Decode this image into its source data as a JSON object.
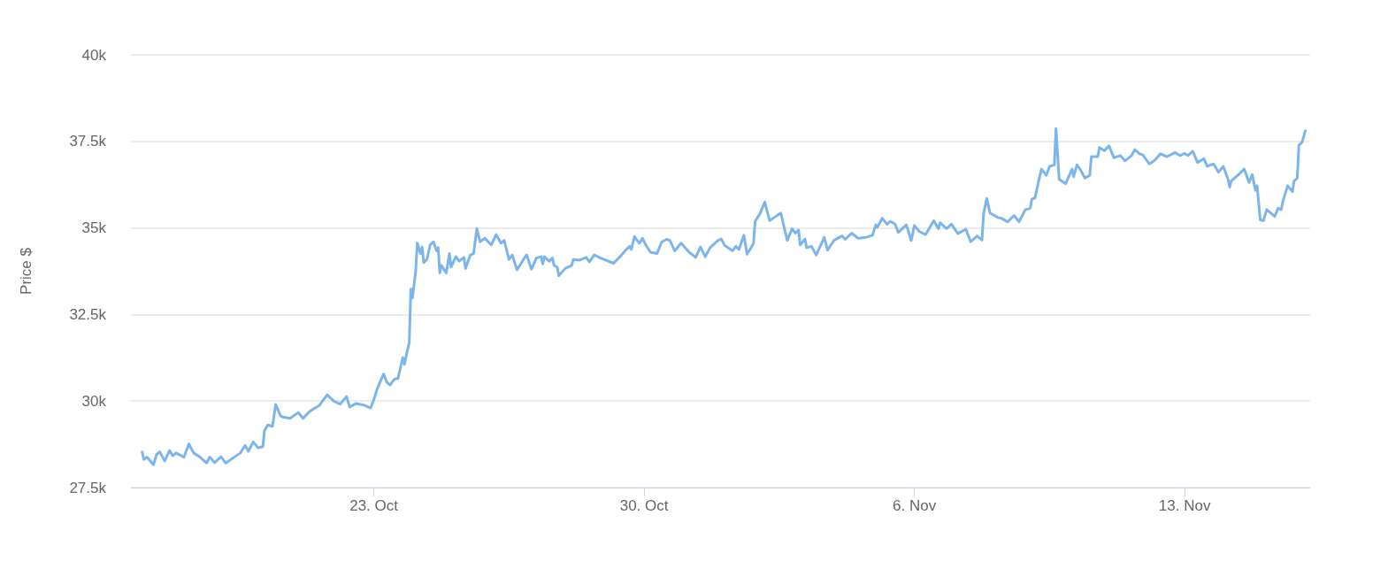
{
  "chart_data": {
    "type": "line",
    "ylabel": "Price $",
    "grid": "y",
    "marker": "none",
    "line_style": "solid",
    "xlim": [
      "--10-16T17:00",
      "--11-16T06:00"
    ],
    "xticks": [
      {
        "value": "--10-23",
        "label": "23. Oct"
      },
      {
        "value": "--10-30",
        "label": "30. Oct"
      },
      {
        "value": "--11-06",
        "label": "6. Nov"
      },
      {
        "value": "--11-13",
        "label": "13. Nov"
      }
    ],
    "ylim": [
      27500,
      40000
    ],
    "yticks": [
      {
        "value": 27500,
        "label": "27.5k"
      },
      {
        "value": 30000,
        "label": "30k"
      },
      {
        "value": 32500,
        "label": "32.5k"
      },
      {
        "value": 35000,
        "label": "35k"
      },
      {
        "value": 37500,
        "label": "37.5k"
      },
      {
        "value": 40000,
        "label": "40k"
      }
    ],
    "series": [
      {
        "color": "#7cb5ec",
        "x": [
          "--10-17T00:00",
          "--10-17T01:00",
          "--10-17T03:00",
          "--10-17T07:00",
          "--10-17T09:00",
          "--10-17T11:00",
          "--10-17T14:00",
          "--10-17T17:00",
          "--10-17T19:00",
          "--10-17T21:00",
          "--10-18T02:00",
          "--10-18T05:00",
          "--10-18T08:00",
          "--10-18T12:00",
          "--10-18T16:00",
          "--10-18T18:00",
          "--10-18T21:00",
          "--10-19T01:00",
          "--10-19T04:00",
          "--10-19T08:00",
          "--10-19T13:00",
          "--10-19T16:00",
          "--10-19T18:00",
          "--10-19T21:00",
          "--10-20T00:00",
          "--10-20T03:00",
          "--10-20T04:00",
          "--10-20T06:00",
          "--10-20T09:00",
          "--10-20T11:00",
          "--10-20T14:00",
          "--10-20T16:00",
          "--10-20T20:00",
          "--10-21T01:00",
          "--10-21T04:00",
          "--10-21T08:00",
          "--10-21T14:00",
          "--10-21T19:00",
          "--10-21T23:00",
          "--10-22T03:00",
          "--10-22T07:00",
          "--10-22T09:00",
          "--10-22T13:00",
          "--10-22T18:00",
          "--10-22T22:00",
          "--10-23T00:00",
          "--10-23T02:00",
          "--10-23T06:00",
          "--10-23T08:00",
          "--10-23T10:00",
          "--10-23T13:00",
          "--10-23T15:00",
          "--10-23T18:00",
          "--10-23T19:00",
          "--10-23T21:00",
          "--10-23T22:00",
          "--10-23T23:00",
          "--10-24T00:00",
          "--10-24T02:00",
          "--10-24T03:00",
          "--10-24T05:00",
          "--10-24T06:00",
          "--10-24T07:00",
          "--10-24T09:00",
          "--10-24T11:00",
          "--10-24T13:00",
          "--10-24T15:00",
          "--10-24T16:00",
          "--10-24T17:00",
          "--10-24T18:00",
          "--10-24T21:00",
          "--10-24T23:00",
          "--10-25T00:00",
          "--10-25T03:00",
          "--10-25T05:00",
          "--10-25T08:00",
          "--10-25T09:00",
          "--10-25T12:00",
          "--10-25T14:00",
          "--10-25T16:00",
          "--10-25T18:00",
          "--10-25T21:00",
          "--10-26T01:00",
          "--10-26T04:00",
          "--10-26T07:00",
          "--10-26T09:00",
          "--10-26T12:00",
          "--10-26T14:00",
          "--10-26T17:00",
          "--10-26T21:00",
          "--10-26T23:00",
          "--10-27T02:00",
          "--10-27T05:00",
          "--10-27T08:00",
          "--10-27T09:00",
          "--10-27T10:00",
          "--10-27T13:00",
          "--10-27T15:00",
          "--10-27T16:00",
          "--10-27T18:00",
          "--10-27T19:00",
          "--10-27T23:00",
          "--10-28T03:00",
          "--10-28T04:00",
          "--10-28T08:00",
          "--10-28T12:00",
          "--10-28T14:00",
          "--10-28T17:00",
          "--10-28T21:00",
          "--10-29T05:00",
          "--10-29T10:00",
          "--10-29T13:00",
          "--10-29T15:00",
          "--10-29T16:00",
          "--10-29T18:00",
          "--10-29T21:00",
          "--10-29T23:00",
          "--10-30T01:00",
          "--10-30T04:00",
          "--10-30T08:00",
          "--10-30T11:00",
          "--10-30T14:00",
          "--10-30T16:00",
          "--10-30T19:00",
          "--10-30T23:00",
          "--10-31T04:00",
          "--10-31T08:00",
          "--10-31T11:00",
          "--10-31T14:00",
          "--10-31T17:00",
          "--10-31T22:00",
          "--11-01T00:00",
          "--11-01T02:00",
          "--11-01T07:00",
          "--11-01T09:00",
          "--11-01T11:00",
          "--11-01T14:00",
          "--11-01T16:00",
          "--11-01T19:00",
          "--11-01T20:00",
          "--11-01T21:00",
          "--11-02T00:00",
          "--11-02T03:00",
          "--11-02T06:00",
          "--11-02T11:00",
          "--11-02T13:00",
          "--11-02T15:00",
          "--11-02T17:00",
          "--11-02T20:00",
          "--11-02T22:00",
          "--11-03T00:00",
          "--11-03T01:00",
          "--11-03T04:00",
          "--11-03T05:00",
          "--11-03T08:00",
          "--11-03T11:00",
          "--11-03T16:00",
          "--11-03T18:00",
          "--11-03T22:00",
          "--11-04T03:00",
          "--11-04T05:00",
          "--11-04T09:00",
          "--11-04T13:00",
          "--11-04T18:00",
          "--11-04T22:00",
          "--11-05T00:00",
          "--11-05T01:00",
          "--11-05T04:00",
          "--11-05T07:00",
          "--11-05T09:00",
          "--11-05T12:00",
          "--11-05T14:00",
          "--11-05T19:00",
          "--11-05T22:00",
          "--11-06T00:00",
          "--11-06T03:00",
          "--11-06T07:00",
          "--11-06T12:00",
          "--11-06T15:00",
          "--11-06T16:00",
          "--11-06T20:00",
          "--11-06T23:00",
          "--11-07T03:00",
          "--11-07T08:00",
          "--11-07T11:00",
          "--11-07T15:00",
          "--11-07T18:00",
          "--11-07T19:00",
          "--11-07T21:00",
          "--11-07T23:00",
          "--11-08T04:00",
          "--11-08T06:00",
          "--11-08T10:00",
          "--11-08T14:00",
          "--11-08T17:00",
          "--11-08T21:00",
          "--11-09T00:00",
          "--11-09T01:00",
          "--11-09T03:00",
          "--11-09T05:00",
          "--11-09T07:00",
          "--11-09T10:00",
          "--11-09T12:00",
          "--11-09T15:00",
          "--11-09T16:00",
          "--11-09T18:00",
          "--11-09T22:00",
          "--11-10T02:00",
          "--11-10T03:00",
          "--11-10T05:00",
          "--11-10T07:00",
          "--11-10T10:00",
          "--11-10T13:00",
          "--11-10T14:00",
          "--11-10T18:00",
          "--11-10T19:00",
          "--11-10T22:00",
          "--11-11T01:00",
          "--11-11T04:00",
          "--11-11T08:00",
          "--11-11T11:00",
          "--11-11T15:00",
          "--11-11T17:00",
          "--11-11T20:00",
          "--11-11T22:00",
          "--11-12T02:00",
          "--11-12T05:00",
          "--11-12T09:00",
          "--11-12T13:00",
          "--11-12T18:00",
          "--11-12T21:00",
          "--11-13T00:00",
          "--11-13T02:00",
          "--11-13T05:00",
          "--11-13T08:00",
          "--11-13T12:00",
          "--11-13T14:00",
          "--11-13T18:00",
          "--11-13T21:00",
          "--11-14T00:00",
          "--11-14T03:00",
          "--11-14T04:00",
          "--11-14T05:00",
          "--11-14T09:00",
          "--11-14T13:00",
          "--11-14T16:00",
          "--11-14T18:00",
          "--11-14T20:00",
          "--11-14T21:00",
          "--11-14T23:00",
          "--11-15T01:00",
          "--11-15T03:00",
          "--11-15T08:00",
          "--11-15T10:00",
          "--11-15T12:00",
          "--11-15T13:00",
          "--11-15T16:00",
          "--11-15T19:00",
          "--11-15T20:00",
          "--11-15T22:00",
          "--11-15T23:00",
          "--11-16T01:00",
          "--11-16T03:00"
        ],
        "values": [
          28530,
          28310,
          28380,
          28160,
          28460,
          28530,
          28270,
          28570,
          28420,
          28500,
          28380,
          28760,
          28500,
          28380,
          28210,
          28380,
          28220,
          28390,
          28210,
          28340,
          28500,
          28720,
          28550,
          28820,
          28650,
          28680,
          29140,
          29310,
          29270,
          29900,
          29570,
          29530,
          29500,
          29670,
          29500,
          29700,
          29870,
          30180,
          30000,
          29910,
          30130,
          29830,
          29930,
          29880,
          29800,
          30040,
          30340,
          30780,
          30550,
          30460,
          30640,
          30650,
          31260,
          31060,
          31490,
          31680,
          33230,
          32980,
          33750,
          34560,
          34260,
          34450,
          34000,
          34090,
          34510,
          34600,
          34340,
          34430,
          33700,
          33920,
          33700,
          34260,
          33870,
          34170,
          34040,
          34150,
          33830,
          34220,
          34260,
          34980,
          34600,
          34700,
          34510,
          34810,
          34560,
          34640,
          34090,
          34220,
          33790,
          34090,
          34220,
          33810,
          34130,
          34170,
          33960,
          34170,
          34040,
          34130,
          33920,
          33870,
          33620,
          33830,
          33920,
          34090,
          34070,
          34150,
          34020,
          34220,
          34130,
          33980,
          34220,
          34380,
          34470,
          34380,
          34750,
          34560,
          34700,
          34510,
          34300,
          34260,
          34600,
          34670,
          34640,
          34340,
          34560,
          34300,
          34150,
          34450,
          34170,
          34430,
          34640,
          34680,
          34500,
          34340,
          34470,
          34380,
          34790,
          34240,
          34470,
          34560,
          35190,
          35410,
          35750,
          35210,
          35370,
          35430,
          35020,
          34640,
          34980,
          34850,
          34940,
          34510,
          34680,
          34430,
          34470,
          34220,
          34730,
          34360,
          34640,
          34770,
          34670,
          34850,
          34700,
          34730,
          34790,
          35090,
          35020,
          35280,
          35110,
          35190,
          35110,
          34870,
          35090,
          34640,
          35070,
          34900,
          34810,
          35210,
          34980,
          35150,
          34980,
          35110,
          34840,
          34960,
          34600,
          34770,
          34650,
          35410,
          35850,
          35430,
          35300,
          35280,
          35180,
          35360,
          35180,
          35530,
          35570,
          35830,
          35870,
          36310,
          36700,
          36520,
          36780,
          36820,
          37870,
          36400,
          36280,
          36700,
          36480,
          36820,
          36700,
          36440,
          36520,
          37060,
          37060,
          37320,
          37230,
          37370,
          37030,
          37090,
          36940,
          37090,
          37260,
          37140,
          37110,
          36850,
          36940,
          37140,
          37060,
          37180,
          37090,
          37150,
          37090,
          37220,
          36890,
          37000,
          36780,
          36850,
          36610,
          36780,
          36400,
          36180,
          36360,
          36520,
          36700,
          36310,
          36540,
          36090,
          36220,
          35230,
          35210,
          35530,
          35330,
          35570,
          35530,
          35760,
          36220,
          36050,
          36350,
          36440,
          37390,
          37480,
          37810
        ]
      }
    ]
  }
}
